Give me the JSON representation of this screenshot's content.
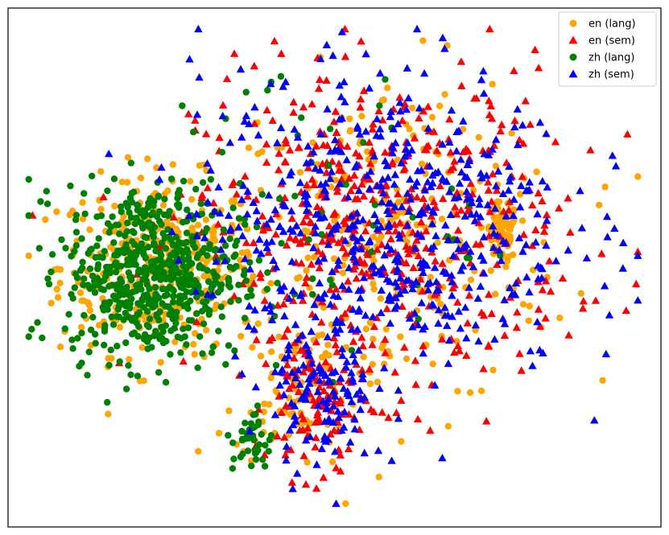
{
  "chart_data": {
    "type": "scatter",
    "title": "",
    "xlabel": "",
    "ylabel": "",
    "axes_visible": false,
    "legend_placement": "top-right",
    "xlim": [
      0,
      100
    ],
    "ylim": [
      0,
      100
    ],
    "series": [
      {
        "name": "en (lang)",
        "marker": "circle",
        "color": "#FFA500",
        "clusters": [
          {
            "cx": 22,
            "cy": 50,
            "sx": 8,
            "sy": 9,
            "n": 360
          },
          {
            "cx": 77,
            "cy": 57,
            "sx": 1.3,
            "sy": 3,
            "n": 70
          },
          {
            "cx": 60,
            "cy": 55,
            "sx": 14,
            "sy": 17,
            "n": 260
          },
          {
            "cx": 44,
            "cy": 25,
            "sx": 5,
            "sy": 8,
            "n": 80
          }
        ]
      },
      {
        "name": "en (sem)",
        "marker": "triangle",
        "color": "#FF0000",
        "clusters": [
          {
            "cx": 58,
            "cy": 58,
            "sx": 15,
            "sy": 16,
            "n": 520
          },
          {
            "cx": 47,
            "cy": 22,
            "sx": 4,
            "sy": 8,
            "n": 110
          }
        ]
      },
      {
        "name": "zh (lang)",
        "marker": "circle",
        "color": "#008000",
        "clusters": [
          {
            "cx": 21,
            "cy": 49,
            "sx": 7,
            "sy": 9,
            "n": 620
          },
          {
            "cx": 37,
            "cy": 14,
            "sx": 1.6,
            "sy": 3.5,
            "n": 40
          },
          {
            "cx": 47,
            "cy": 62,
            "sx": 12,
            "sy": 16,
            "n": 50
          }
        ]
      },
      {
        "name": "zh (sem)",
        "marker": "triangle",
        "color": "#0000FF",
        "clusters": [
          {
            "cx": 58,
            "cy": 59,
            "sx": 15,
            "sy": 16,
            "n": 540
          },
          {
            "cx": 48,
            "cy": 23,
            "sx": 4,
            "sy": 8,
            "n": 110
          }
        ]
      }
    ]
  }
}
